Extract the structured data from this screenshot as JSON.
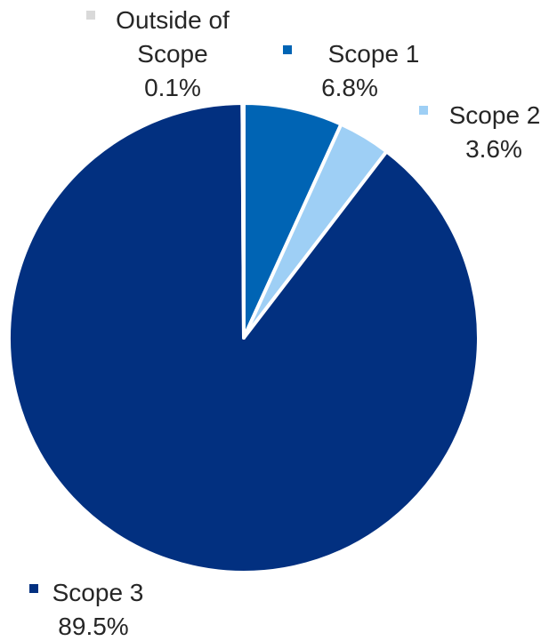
{
  "chart_data": {
    "type": "pie",
    "title": "",
    "slices": [
      {
        "name": "Scope 1",
        "value": 6.8,
        "label": "6.8%",
        "color": "#0064B4"
      },
      {
        "name": "Scope 2",
        "value": 3.6,
        "label": "3.6%",
        "color": "#9ECFF5"
      },
      {
        "name": "Scope 3",
        "value": 89.5,
        "label": "89.5%",
        "color": "#023080"
      },
      {
        "name": "Outside of Scope",
        "value": 0.1,
        "label": "0.1%",
        "color": "#D9D9D9"
      }
    ],
    "legend": "data labels with series markers",
    "start_angle": "12 o'clock, clockwise"
  }
}
